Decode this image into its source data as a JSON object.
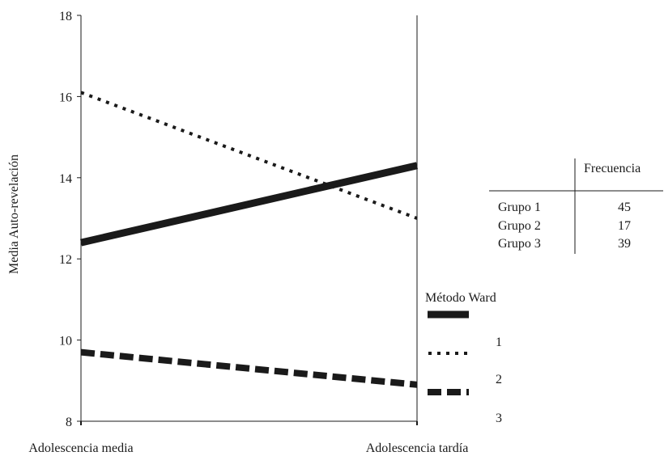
{
  "chart_data": {
    "type": "line",
    "ylabel": "Media Auto-revelación",
    "xlabel": "",
    "x": [
      "Adolescencia media",
      "Adolescencia tardía"
    ],
    "ylim": [
      8,
      18
    ],
    "yticks": [
      8,
      10,
      12,
      14,
      16,
      18
    ],
    "grid": false,
    "series": [
      {
        "name": "1",
        "style": "solid",
        "values": [
          12.4,
          14.3
        ]
      },
      {
        "name": "2",
        "style": "dotted",
        "values": [
          16.1,
          13.0
        ]
      },
      {
        "name": "3",
        "style": "dashed",
        "values": [
          9.7,
          8.9
        ]
      }
    ],
    "legend": {
      "title": "Método Ward",
      "placement": "right"
    },
    "table": {
      "header": "Frecuencia",
      "rows": [
        {
          "label": "Grupo 1",
          "value": "45"
        },
        {
          "label": "Grupo 2",
          "value": "17"
        },
        {
          "label": "Grupo 3",
          "value": "39"
        }
      ]
    }
  },
  "colors": {
    "line": "#1a1a1a",
    "axis": "#1a1a1a"
  }
}
